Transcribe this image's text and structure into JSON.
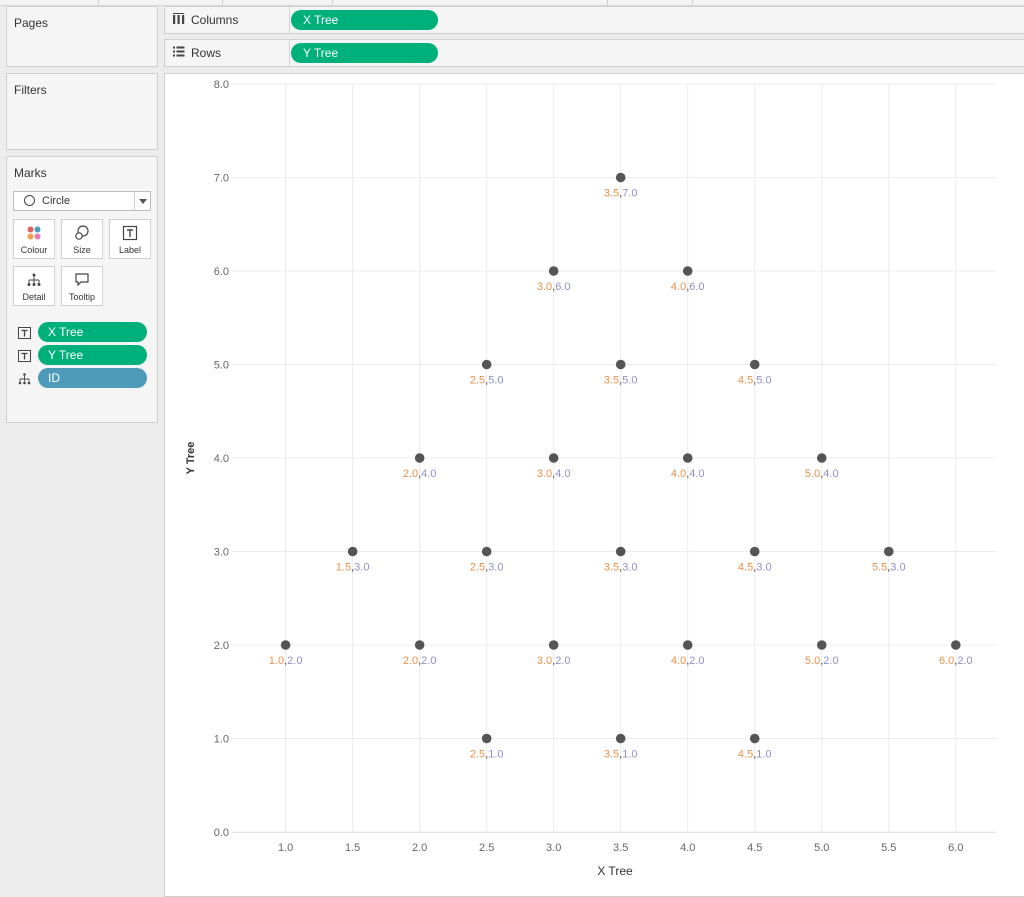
{
  "shelves": {
    "pages_title": "Pages",
    "filters_title": "Filters",
    "columns_label": "Columns",
    "rows_label": "Rows",
    "columns_pill": "X Tree",
    "rows_pill": "Y Tree"
  },
  "marks": {
    "title": "Marks",
    "mark_type": "Circle",
    "buttons": [
      "Colour",
      "Size",
      "Label",
      "Detail",
      "Tooltip"
    ],
    "fields": [
      {
        "name": "X Tree",
        "icon": "label-icon",
        "color": "#00b07a"
      },
      {
        "name": "Y Tree",
        "icon": "label-icon",
        "color": "#00b07a"
      },
      {
        "name": "ID",
        "icon": "detail-icon",
        "color": "#4d9bb8"
      }
    ]
  },
  "colors": {
    "point": "#555555",
    "x_label": "#e8914a",
    "y_label": "#8f8fc9",
    "pill_green": "#00b07a",
    "pill_blue": "#4d9bb8",
    "grid": "#ececec",
    "axis_text": "#666666"
  },
  "chart_data": {
    "type": "scatter",
    "xlabel": "X Tree",
    "ylabel": "Y Tree",
    "xlim": [
      0.6,
      6.3
    ],
    "ylim": [
      0.0,
      8.0
    ],
    "x_ticks": [
      "1.0",
      "1.5",
      "2.0",
      "2.5",
      "3.0",
      "3.5",
      "4.0",
      "4.5",
      "5.0",
      "5.5",
      "6.0"
    ],
    "y_ticks": [
      "0.0",
      "1.0",
      "2.0",
      "3.0",
      "4.0",
      "5.0",
      "6.0",
      "7.0",
      "8.0"
    ],
    "grid": true,
    "points": [
      {
        "x": 3.5,
        "y": 7.0,
        "xl": "3.5",
        "yl": "7.0"
      },
      {
        "x": 3.0,
        "y": 6.0,
        "xl": "3.0",
        "yl": "6.0"
      },
      {
        "x": 4.0,
        "y": 6.0,
        "xl": "4.0",
        "yl": "6.0"
      },
      {
        "x": 2.5,
        "y": 5.0,
        "xl": "2.5",
        "yl": "5.0"
      },
      {
        "x": 3.5,
        "y": 5.0,
        "xl": "3.5",
        "yl": "5.0"
      },
      {
        "x": 4.5,
        "y": 5.0,
        "xl": "4.5",
        "yl": "5.0"
      },
      {
        "x": 2.0,
        "y": 4.0,
        "xl": "2.0",
        "yl": "4.0"
      },
      {
        "x": 3.0,
        "y": 4.0,
        "xl": "3.0",
        "yl": "4.0"
      },
      {
        "x": 4.0,
        "y": 4.0,
        "xl": "4.0",
        "yl": "4.0"
      },
      {
        "x": 5.0,
        "y": 4.0,
        "xl": "5.0",
        "yl": "4.0"
      },
      {
        "x": 1.5,
        "y": 3.0,
        "xl": "1.5",
        "yl": "3.0"
      },
      {
        "x": 2.5,
        "y": 3.0,
        "xl": "2.5",
        "yl": "3.0"
      },
      {
        "x": 3.5,
        "y": 3.0,
        "xl": "3.5",
        "yl": "3.0"
      },
      {
        "x": 4.5,
        "y": 3.0,
        "xl": "4.5",
        "yl": "3.0"
      },
      {
        "x": 5.5,
        "y": 3.0,
        "xl": "5.5",
        "yl": "3.0"
      },
      {
        "x": 1.0,
        "y": 2.0,
        "xl": "1.0",
        "yl": "2.0"
      },
      {
        "x": 2.0,
        "y": 2.0,
        "xl": "2.0",
        "yl": "2.0"
      },
      {
        "x": 3.0,
        "y": 2.0,
        "xl": "3.0",
        "yl": "2.0"
      },
      {
        "x": 4.0,
        "y": 2.0,
        "xl": "4.0",
        "yl": "2.0"
      },
      {
        "x": 5.0,
        "y": 2.0,
        "xl": "5.0",
        "yl": "2.0"
      },
      {
        "x": 6.0,
        "y": 2.0,
        "xl": "6.0",
        "yl": "2.0"
      },
      {
        "x": 2.5,
        "y": 1.0,
        "xl": "2.5",
        "yl": "1.0"
      },
      {
        "x": 3.5,
        "y": 1.0,
        "xl": "3.5",
        "yl": "1.0"
      },
      {
        "x": 4.5,
        "y": 1.0,
        "xl": "4.5",
        "yl": "1.0"
      }
    ]
  }
}
